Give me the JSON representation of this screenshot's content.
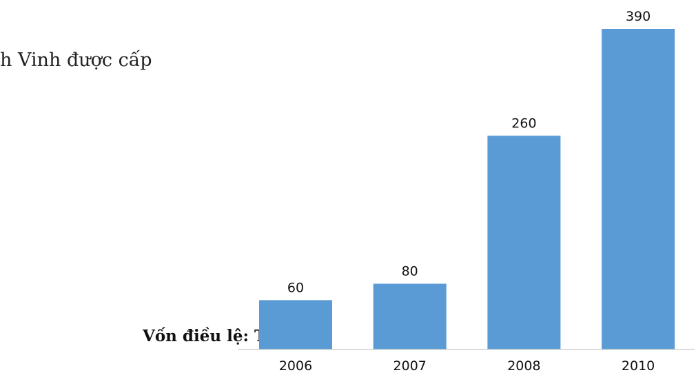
{
  "text": {
    "intro_fragment": "h Vinh được cấp",
    "unit_label": "Vốn điều lệ: Tỷ đồng"
  },
  "colors": {
    "bar": "#5b9bd5",
    "axis": "#d0d0d0",
    "label": "#111111"
  },
  "chart_data": {
    "type": "bar",
    "categories": [
      "2006",
      "2007",
      "2008",
      "2010"
    ],
    "values": [
      60,
      80,
      260,
      390
    ],
    "title": "",
    "xlabel": "",
    "ylabel": "Vốn điều lệ: Tỷ đồng",
    "ylim": [
      0,
      390
    ],
    "grid": false,
    "legend": "none",
    "data_labels": true
  }
}
